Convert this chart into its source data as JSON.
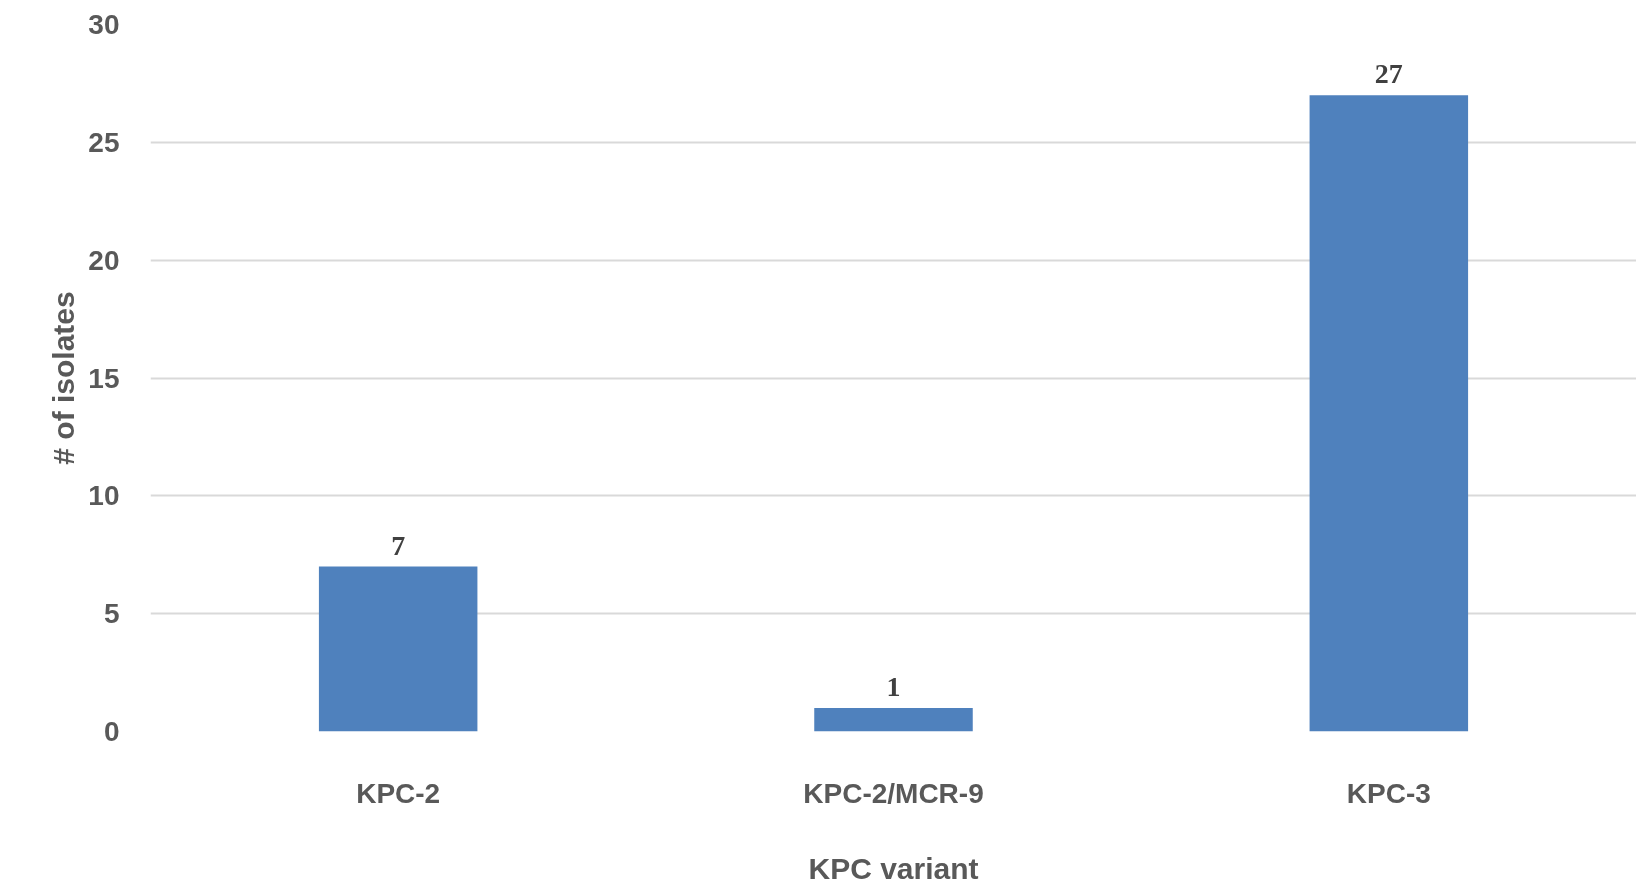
{
  "chart_data": {
    "type": "bar",
    "xlabel": "KPC variant",
    "ylabel": "# of isolates",
    "categories": [
      "KPC-2",
      "KPC-2/MCR-9",
      "KPC-3"
    ],
    "values": [
      7,
      1,
      27
    ],
    "color": "#4f81bd",
    "ylim": [
      0,
      30
    ],
    "yticks": [
      0,
      5,
      10,
      15,
      20,
      25,
      30
    ],
    "grid": "y",
    "data_labels": true
  }
}
